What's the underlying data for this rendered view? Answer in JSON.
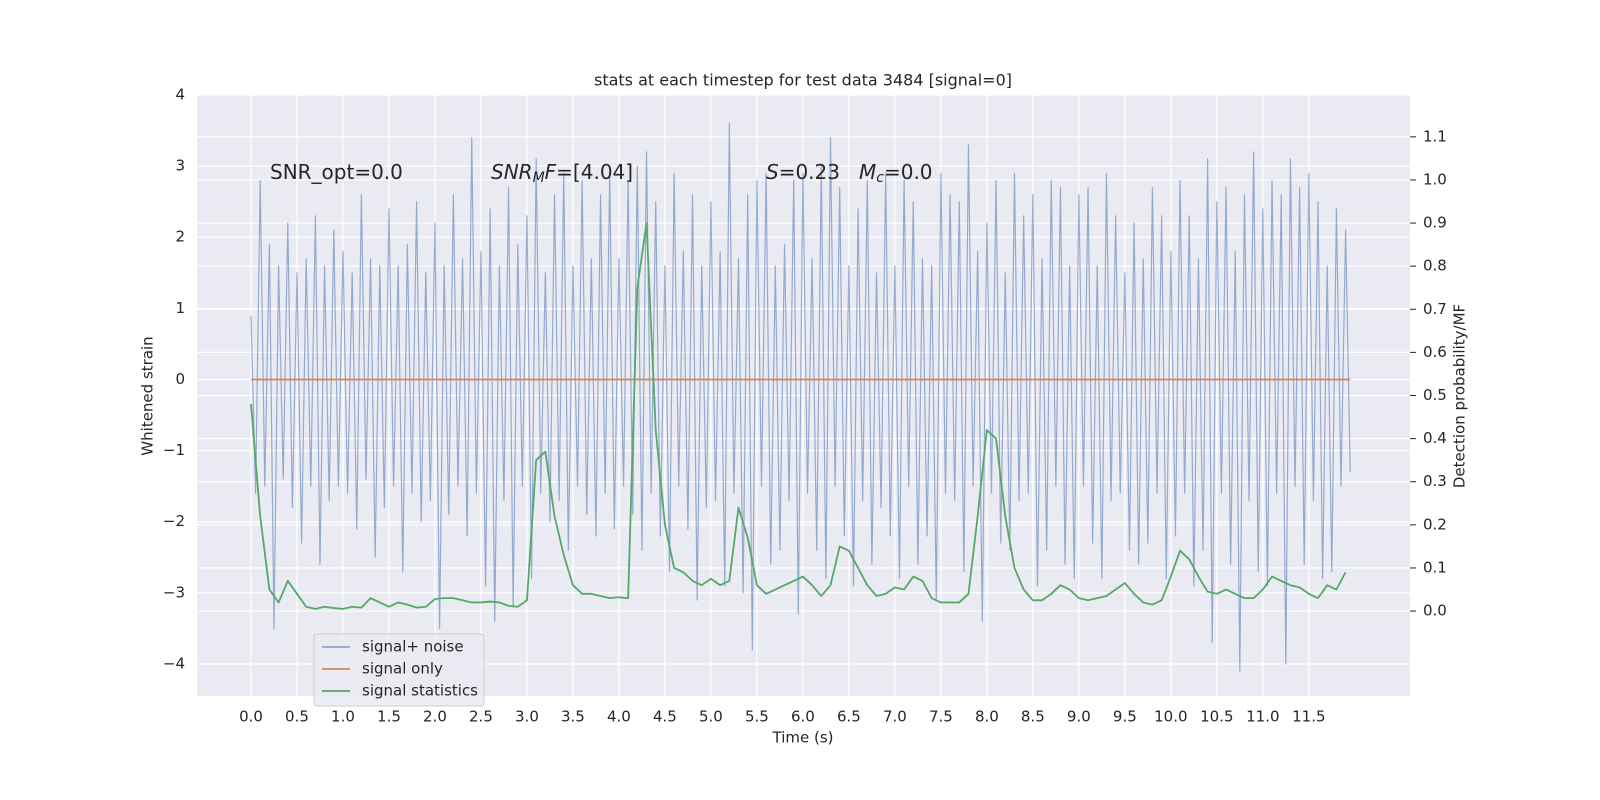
{
  "chart_data": {
    "type": "line",
    "title": "stats at each timestep for test data 3484 [signal=0]",
    "xlabel": "Time (s)",
    "ylabel": "Whitened strain",
    "y2label": "Detection probability/MF",
    "xlim": [
      -0.587,
      12.6
    ],
    "ylim": [
      -4.45,
      4.0
    ],
    "y2lim": [
      -0.197,
      1.197
    ],
    "xticks": [
      {
        "value": 0,
        "label": "0.0"
      },
      {
        "value": 0.5,
        "label": "0.5"
      },
      {
        "value": 1,
        "label": "1.0"
      },
      {
        "value": 1.5,
        "label": "1.5"
      },
      {
        "value": 2,
        "label": "2.0"
      },
      {
        "value": 2.5,
        "label": "2.5"
      },
      {
        "value": 3,
        "label": "3.0"
      },
      {
        "value": 3.5,
        "label": "3.5"
      },
      {
        "value": 4,
        "label": "4.0"
      },
      {
        "value": 4.5,
        "label": "4.5"
      },
      {
        "value": 5,
        "label": "5.0"
      },
      {
        "value": 5.5,
        "label": "5.5"
      },
      {
        "value": 6,
        "label": "6.0"
      },
      {
        "value": 6.5,
        "label": "6.5"
      },
      {
        "value": 7,
        "label": "7.0"
      },
      {
        "value": 7.5,
        "label": "7.5"
      },
      {
        "value": 8,
        "label": "8.0"
      },
      {
        "value": 8.5,
        "label": "8.5"
      },
      {
        "value": 9,
        "label": "9.0"
      },
      {
        "value": 9.5,
        "label": "9.5"
      },
      {
        "value": 10,
        "label": "10.0"
      },
      {
        "value": 10.5,
        "label": "10.5"
      },
      {
        "value": 11,
        "label": "11.0"
      },
      {
        "value": 11.5,
        "label": "11.5"
      }
    ],
    "yticks": [
      {
        "value": -4,
        "label": "−4"
      },
      {
        "value": -3,
        "label": "−3"
      },
      {
        "value": -2,
        "label": "−2"
      },
      {
        "value": -1,
        "label": "−1"
      },
      0,
      1,
      2,
      3,
      4
    ],
    "y2ticks": [
      {
        "value": 0,
        "label": "0.0"
      },
      {
        "value": 0.1,
        "label": "0.1"
      },
      {
        "value": 0.2,
        "label": "0.2"
      },
      {
        "value": 0.3,
        "label": "0.3"
      },
      {
        "value": 0.4,
        "label": "0.4"
      },
      {
        "value": 0.5,
        "label": "0.5"
      },
      {
        "value": 0.6,
        "label": "0.6"
      },
      {
        "value": 0.7,
        "label": "0.7"
      },
      {
        "value": 0.8,
        "label": "0.8"
      },
      {
        "value": 0.9,
        "label": "0.9"
      },
      {
        "value": 1.0,
        "label": "1.0"
      },
      {
        "value": 1.1,
        "label": "1.1"
      }
    ],
    "grid": true,
    "legend": "lower left",
    "annotations": [
      {
        "runs": [
          {
            "text": "SNR_opt=0.0",
            "style": "normal"
          }
        ]
      },
      {
        "runs": [
          {
            "text": "SNR",
            "style": "italic"
          },
          {
            "text": "M",
            "style": "italic-sub"
          },
          {
            "text": "F",
            "style": "italic"
          },
          {
            "text": "=[4.04]",
            "style": "normal"
          }
        ]
      },
      {
        "runs": [
          {
            "text": "S",
            "style": "italic"
          },
          {
            "text": "=0.23",
            "style": "normal"
          }
        ]
      },
      {
        "runs": [
          {
            "text": "M",
            "style": "italic"
          },
          {
            "text": "c",
            "style": "italic-sub"
          },
          {
            "text": "=0.0",
            "style": "normal"
          }
        ]
      }
    ],
    "series": [
      {
        "name": "signal+ noise",
        "color": "#4c72b0",
        "x": [
          0,
          0.05,
          0.1,
          0.15,
          0.2,
          0.25,
          0.3,
          0.35,
          0.4,
          0.45,
          0.5,
          0.55,
          0.6,
          0.65,
          0.7,
          0.75,
          0.8,
          0.85,
          0.9,
          0.95,
          1,
          1.05,
          1.1,
          1.15,
          1.2,
          1.25,
          1.3,
          1.35,
          1.4,
          1.45,
          1.5,
          1.55,
          1.6,
          1.65,
          1.7,
          1.75,
          1.8,
          1.85,
          1.9,
          1.95,
          2,
          2.05,
          2.1,
          2.15,
          2.2,
          2.25,
          2.3,
          2.35,
          2.4,
          2.45,
          2.5,
          2.55,
          2.6,
          2.65,
          2.7,
          2.75,
          2.8,
          2.85,
          2.9,
          2.95,
          3,
          3.05,
          3.1,
          3.15,
          3.2,
          3.25,
          3.3,
          3.35,
          3.4,
          3.45,
          3.5,
          3.55,
          3.6,
          3.65,
          3.7,
          3.75,
          3.8,
          3.85,
          3.9,
          3.95,
          4,
          4.05,
          4.1,
          4.15,
          4.2,
          4.25,
          4.3,
          4.35,
          4.4,
          4.45,
          4.5,
          4.55,
          4.6,
          4.65,
          4.7,
          4.75,
          4.8,
          4.85,
          4.9,
          4.95,
          5,
          5.05,
          5.1,
          5.15,
          5.2,
          5.25,
          5.3,
          5.35,
          5.4,
          5.45,
          5.5,
          5.55,
          5.6,
          5.65,
          5.7,
          5.75,
          5.8,
          5.85,
          5.9,
          5.95,
          6,
          6.05,
          6.1,
          6.15,
          6.2,
          6.25,
          6.3,
          6.35,
          6.4,
          6.45,
          6.5,
          6.55,
          6.6,
          6.65,
          6.7,
          6.75,
          6.8,
          6.85,
          6.9,
          6.95,
          7,
          7.05,
          7.1,
          7.15,
          7.2,
          7.25,
          7.3,
          7.35,
          7.4,
          7.45,
          7.5,
          7.55,
          7.6,
          7.65,
          7.7,
          7.75,
          7.8,
          7.85,
          7.9,
          7.95,
          8,
          8.05,
          8.1,
          8.15,
          8.2,
          8.25,
          8.3,
          8.35,
          8.4,
          8.45,
          8.5,
          8.55,
          8.6,
          8.65,
          8.7,
          8.75,
          8.8,
          8.85,
          8.9,
          8.95,
          9,
          9.05,
          9.1,
          9.15,
          9.2,
          9.25,
          9.3,
          9.35,
          9.4,
          9.45,
          9.5,
          9.55,
          9.6,
          9.65,
          9.7,
          9.75,
          9.8,
          9.85,
          9.9,
          9.95,
          10,
          10.05,
          10.1,
          10.15,
          10.2,
          10.25,
          10.3,
          10.35,
          10.4,
          10.45,
          10.5,
          10.55,
          10.6,
          10.65,
          10.7,
          10.75,
          10.8,
          10.85,
          10.9,
          10.95,
          11,
          11.05,
          11.1,
          11.15,
          11.2,
          11.25,
          11.3,
          11.35,
          11.4,
          11.45,
          11.5,
          11.55,
          11.6,
          11.65,
          11.7,
          11.75,
          11.8,
          11.85,
          11.9,
          11.95
        ],
        "values": [
          0.9,
          -1.6,
          2.8,
          -1.5,
          1.9,
          -3.5,
          1.6,
          -1.4,
          2.2,
          -1.8,
          1.5,
          -2.3,
          1.7,
          -1.5,
          2.3,
          -2.6,
          1.6,
          -1.7,
          2.1,
          -1.5,
          1.8,
          -1.6,
          1.5,
          -2.1,
          2.6,
          -1.4,
          1.7,
          -2.5,
          1.6,
          -1.8,
          2.4,
          -1.5,
          1.6,
          -2.7,
          1.9,
          -1.6,
          2.5,
          -2.0,
          1.5,
          -1.7,
          2.2,
          -3.5,
          1.6,
          -1.9,
          2.6,
          -1.5,
          1.7,
          -2.2,
          3.4,
          -1.6,
          1.8,
          -2.9,
          2.4,
          -3.4,
          1.6,
          -1.7,
          2.7,
          -3.2,
          1.9,
          -1.5,
          2.3,
          -2.8,
          3.1,
          -1.6,
          1.5,
          -2.0,
          2.6,
          -1.7,
          2.9,
          -2.4,
          1.6,
          -1.5,
          2.8,
          -1.9,
          1.7,
          -2.2,
          2.6,
          -1.6,
          2.9,
          -2.1,
          1.7,
          -1.5,
          2.8,
          -1.9,
          3.0,
          -2.4,
          3.2,
          -1.6,
          2.5,
          -2.2,
          1.6,
          -2.7,
          2.9,
          -1.5,
          1.8,
          -2.1,
          2.6,
          -3.1,
          1.6,
          -1.8,
          2.5,
          -1.7,
          1.8,
          -2.9,
          3.6,
          -1.6,
          1.7,
          -3.0,
          2.6,
          -3.8,
          2.8,
          -1.5,
          2.9,
          -2.6,
          1.6,
          -2.4,
          1.9,
          -1.7,
          2.8,
          -3.3,
          2.9,
          -1.6,
          1.7,
          -2.4,
          3.0,
          -2.8,
          3.4,
          -1.5,
          2.7,
          -2.2,
          1.6,
          -2.9,
          2.4,
          -1.7,
          2.8,
          -2.6,
          1.5,
          -1.8,
          2.9,
          -2.2,
          1.6,
          -2.8,
          2.8,
          -1.5,
          2.5,
          -2.6,
          1.7,
          -2.2,
          1.6,
          -3.1,
          2.9,
          -1.6,
          2.6,
          -1.7,
          2.5,
          -2.7,
          3.3,
          -1.5,
          1.8,
          -3.4,
          2.2,
          -1.6,
          2.8,
          -2.3,
          1.5,
          -2.4,
          2.9,
          -1.7,
          2.3,
          -1.6,
          2.6,
          -2.9,
          1.7,
          -2.4,
          2.8,
          -1.5,
          2.7,
          -2.6,
          1.6,
          -2.8,
          2.6,
          -1.5,
          2.7,
          -2.3,
          1.6,
          -2.8,
          2.9,
          -1.7,
          2.3,
          -1.6,
          1.5,
          -2.4,
          2.2,
          -2.6,
          1.7,
          -2.3,
          2.7,
          -1.6,
          2.3,
          -2.8,
          1.8,
          -2.2,
          2.8,
          -1.6,
          2.3,
          -2.9,
          1.7,
          -2.4,
          3.1,
          -3.7,
          2.5,
          -1.6,
          2.7,
          -2.6,
          1.8,
          -4.1,
          2.6,
          -1.7,
          3.2,
          -2.7,
          2.4,
          -2.9,
          2.8,
          -1.6,
          2.6,
          -4.0,
          3.1,
          -1.5,
          2.7,
          -2.6,
          2.9,
          -1.7,
          2.5,
          -2.8,
          1.6,
          -2.7,
          2.4,
          -1.5,
          2.1,
          -1.3
        ]
      },
      {
        "name": "signal only",
        "color": "#dd8452",
        "x": [
          0,
          11.95
        ],
        "values": [
          0,
          0
        ]
      },
      {
        "name": "signal statistics",
        "color": "#55a868",
        "axis": "y2",
        "x": [
          0,
          0.1,
          0.2,
          0.3,
          0.4,
          0.5,
          0.6,
          0.7,
          0.8,
          0.9,
          1,
          1.1,
          1.2,
          1.3,
          1.4,
          1.5,
          1.6,
          1.7,
          1.8,
          1.9,
          2,
          2.1,
          2.2,
          2.3,
          2.4,
          2.5,
          2.6,
          2.7,
          2.8,
          2.9,
          3,
          3.1,
          3.2,
          3.3,
          3.4,
          3.5,
          3.6,
          3.7,
          3.8,
          3.9,
          4,
          4.1,
          4.2,
          4.3,
          4.4,
          4.5,
          4.6,
          4.7,
          4.8,
          4.9,
          5,
          5.1,
          5.2,
          5.3,
          5.4,
          5.5,
          5.6,
          5.7,
          5.8,
          5.9,
          6,
          6.1,
          6.2,
          6.3,
          6.4,
          6.5,
          6.6,
          6.7,
          6.8,
          6.9,
          7,
          7.1,
          7.2,
          7.3,
          7.4,
          7.5,
          7.6,
          7.7,
          7.8,
          7.9,
          8,
          8.1,
          8.2,
          8.3,
          8.4,
          8.5,
          8.6,
          8.7,
          8.8,
          8.9,
          9,
          9.1,
          9.2,
          9.3,
          9.4,
          9.5,
          9.6,
          9.7,
          9.8,
          9.9,
          10,
          10.1,
          10.2,
          10.3,
          10.4,
          10.5,
          10.6,
          10.7,
          10.8,
          10.9,
          11,
          11.1,
          11.2,
          11.3,
          11.4,
          11.5,
          11.6,
          11.7,
          11.8,
          11.9
        ],
        "values": [
          0.48,
          0.22,
          0.05,
          0.02,
          0.07,
          0.04,
          0.01,
          0.005,
          0.01,
          0.007,
          0.005,
          0.01,
          0.008,
          0.03,
          0.02,
          0.01,
          0.02,
          0.015,
          0.008,
          0.01,
          0.028,
          0.03,
          0.03,
          0.025,
          0.02,
          0.02,
          0.022,
          0.02,
          0.012,
          0.01,
          0.025,
          0.35,
          0.37,
          0.22,
          0.13,
          0.06,
          0.04,
          0.04,
          0.035,
          0.03,
          0.032,
          0.03,
          0.75,
          0.9,
          0.42,
          0.2,
          0.1,
          0.09,
          0.07,
          0.06,
          0.075,
          0.06,
          0.07,
          0.24,
          0.17,
          0.06,
          0.04,
          0.05,
          0.06,
          0.07,
          0.08,
          0.06,
          0.035,
          0.06,
          0.15,
          0.14,
          0.1,
          0.06,
          0.035,
          0.04,
          0.055,
          0.05,
          0.08,
          0.07,
          0.03,
          0.02,
          0.02,
          0.02,
          0.04,
          0.22,
          0.42,
          0.4,
          0.22,
          0.1,
          0.05,
          0.025,
          0.025,
          0.04,
          0.06,
          0.05,
          0.03,
          0.025,
          0.03,
          0.035,
          0.05,
          0.065,
          0.04,
          0.02,
          0.015,
          0.025,
          0.08,
          0.14,
          0.12,
          0.08,
          0.045,
          0.04,
          0.05,
          0.04,
          0.03,
          0.03,
          0.05,
          0.08,
          0.07,
          0.06,
          0.055,
          0.04,
          0.03,
          0.06,
          0.05,
          0.09
        ]
      }
    ]
  }
}
